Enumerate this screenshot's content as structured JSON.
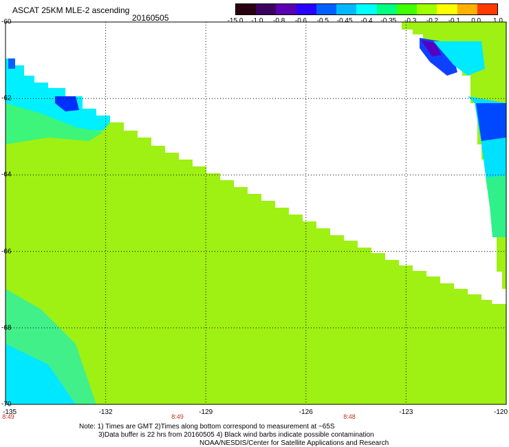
{
  "header": {
    "title": "ASCAT 25KM MLE-2 ascending",
    "date": "20160505"
  },
  "colorbar": {
    "labels": [
      "-15.0",
      "-1.0",
      "-0.8",
      "-0.6",
      "-0.5",
      "-0.45",
      "-0.4",
      "-0.35",
      "-0.3",
      "-0.2",
      "-0.1",
      "0.0",
      "1.0"
    ],
    "colors": [
      "#2a0010",
      "#3b0060",
      "#5a00b0",
      "#2800ff",
      "#0060ff",
      "#00b8ff",
      "#00ffff",
      "#00ff80",
      "#40ff00",
      "#a0ff00",
      "#ffff00",
      "#ffb000",
      "#ff3a00"
    ]
  },
  "map": {
    "lat_range": [
      -70,
      -60
    ],
    "lon_range": [
      -135,
      -120
    ],
    "lat_labels": [
      "-60",
      "-62",
      "-64",
      "-66",
      "-68",
      "-70"
    ],
    "lon_labels": [
      "-135",
      "-132",
      "-129",
      "-126",
      "-123",
      "-120"
    ],
    "time_labels": [
      "8:49",
      "8:49",
      "8:48"
    ],
    "base_color": "#9ff013",
    "grid_color": "#000000"
  },
  "notes": {
    "line1": "Note: 1) Times are GMT 2)Times along bottom correspond to measurement at ~65S",
    "line2": "3)Data buffer is 22 hrs from 20160505 4) Black wind barbs indicate possible contamination",
    "line3": "NOAA/NESDIS/Center for Satellite Applications and Research"
  }
}
